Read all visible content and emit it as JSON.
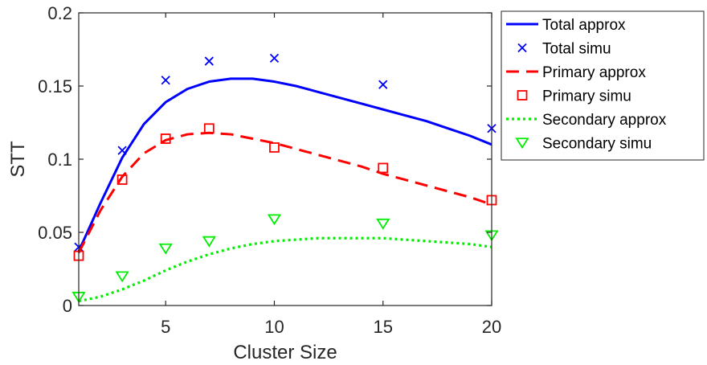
{
  "chart_data": {
    "type": "line",
    "xlabel": "Cluster Size",
    "ylabel": "STT",
    "xlim": [
      1,
      20
    ],
    "ylim": [
      0,
      0.2
    ],
    "xticks": [
      5,
      10,
      15,
      20
    ],
    "yticks": [
      0,
      0.05,
      0.1,
      0.15,
      0.2
    ],
    "ytick_labels": [
      "0",
      "0.05",
      "0.1",
      "0.15",
      "0.2"
    ],
    "grid": false,
    "legend_position": "outside-top-right",
    "series": [
      {
        "name": "Total approx",
        "style": "solid-line",
        "color": "#0000ff",
        "x": [
          1,
          2,
          3,
          4,
          5,
          6,
          7,
          8,
          9,
          10,
          11,
          12,
          13,
          14,
          15,
          16,
          17,
          18,
          19,
          20
        ],
        "y": [
          0.037,
          0.07,
          0.101,
          0.124,
          0.139,
          0.148,
          0.153,
          0.155,
          0.155,
          0.153,
          0.15,
          0.146,
          0.142,
          0.138,
          0.134,
          0.13,
          0.126,
          0.121,
          0.116,
          0.11
        ]
      },
      {
        "name": "Total simu",
        "style": "x-marker",
        "color": "#0000ff",
        "x": [
          1,
          3,
          5,
          7,
          10,
          15,
          20
        ],
        "y": [
          0.04,
          0.106,
          0.154,
          0.167,
          0.169,
          0.151,
          0.121
        ]
      },
      {
        "name": "Primary approx",
        "style": "dashed-line",
        "color": "#ff0000",
        "x": [
          1,
          2,
          3,
          4,
          5,
          6,
          7,
          8,
          9,
          10,
          11,
          12,
          13,
          14,
          15,
          16,
          17,
          18,
          19,
          20
        ],
        "y": [
          0.036,
          0.065,
          0.088,
          0.104,
          0.113,
          0.117,
          0.118,
          0.117,
          0.114,
          0.111,
          0.107,
          0.103,
          0.099,
          0.095,
          0.09,
          0.086,
          0.082,
          0.078,
          0.074,
          0.069
        ]
      },
      {
        "name": "Primary simu",
        "style": "square-marker",
        "color": "#ff0000",
        "x": [
          1,
          3,
          5,
          7,
          10,
          15,
          20
        ],
        "y": [
          0.034,
          0.086,
          0.114,
          0.121,
          0.108,
          0.094,
          0.072
        ]
      },
      {
        "name": "Secondary approx",
        "style": "dotted-line",
        "color": "#00ee00",
        "x": [
          1,
          2,
          3,
          4,
          5,
          6,
          7,
          8,
          9,
          10,
          11,
          12,
          13,
          14,
          15,
          16,
          17,
          18,
          19,
          20
        ],
        "y": [
          0.003,
          0.006,
          0.011,
          0.017,
          0.024,
          0.03,
          0.035,
          0.039,
          0.042,
          0.044,
          0.045,
          0.046,
          0.046,
          0.046,
          0.046,
          0.045,
          0.044,
          0.043,
          0.042,
          0.04
        ]
      },
      {
        "name": "Secondary simu",
        "style": "triangle-down-marker",
        "color": "#00ee00",
        "x": [
          1,
          3,
          5,
          7,
          10,
          15,
          20
        ],
        "y": [
          0.006,
          0.02,
          0.039,
          0.044,
          0.059,
          0.056,
          0.048
        ]
      }
    ]
  }
}
